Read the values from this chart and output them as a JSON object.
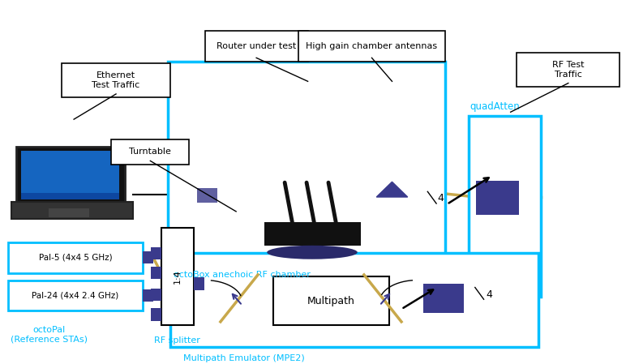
{
  "bg_color": "#ffffff",
  "cyan": "#00bfff",
  "dark_blue": "#3a3a8c",
  "gold_line": "#c8a84b",
  "black": "#000000",
  "octobox_label": "octoBox anechoic RF chamber",
  "quadatten_label": "quadAtten",
  "mpe2_label": "Multipath Emulator (MPE2)",
  "pal24_label": "Pal-24 (4x4 2.4 GHz)",
  "pal5_label": "Pal-5 (4x4 5 GHz)",
  "octopal_label": "octoPal\n(Reference STAs)",
  "rfsplitter_label": "RF splitter",
  "multipath_label": "Multipath",
  "ethernet_label": "Ethernet\nTest Traffic",
  "router_label": "Router under test",
  "highgain_label": "High gain chamber antennas",
  "rftest_label": "RF Test\nTraffic",
  "turntable_label": "Turntable"
}
